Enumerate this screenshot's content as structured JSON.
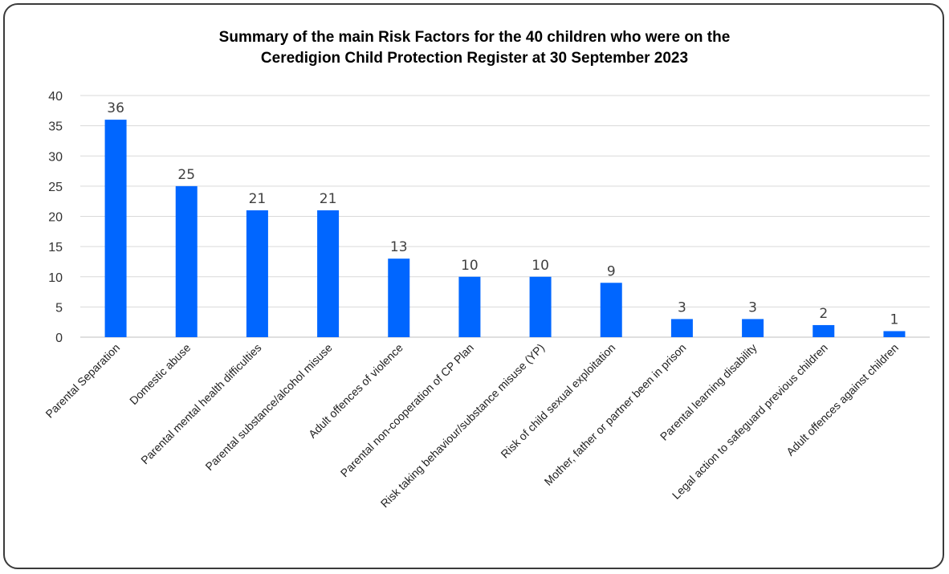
{
  "chart_data": {
    "type": "bar",
    "title_line1": "Summary of the main Risk Factors for the 40 children who were on the",
    "title_line2": "Ceredigion Child Protection Register at 30 September 2023",
    "categories": [
      "Parental Separation",
      "Domestic abuse",
      "Parental mental health difficulties",
      "Parental substance/alcohol misuse",
      "Adult offences of violence",
      "Parental non-cooperation of CP Plan",
      "Risk taking behaviour/substance misuse (YP)",
      "Risk of child sexual exploitation",
      "Mother, father or partner been in prison",
      "Parental learning disability",
      "Legal action  to safeguard previous children",
      "Adult offences against children"
    ],
    "values": [
      36,
      25,
      21,
      21,
      13,
      10,
      10,
      9,
      3,
      3,
      2,
      1
    ],
    "ylim": [
      0,
      40
    ],
    "yticks": [
      0,
      5,
      10,
      15,
      20,
      25,
      30,
      35,
      40
    ],
    "grid": true,
    "data_labels": true,
    "bar_color": "#0066ff"
  }
}
